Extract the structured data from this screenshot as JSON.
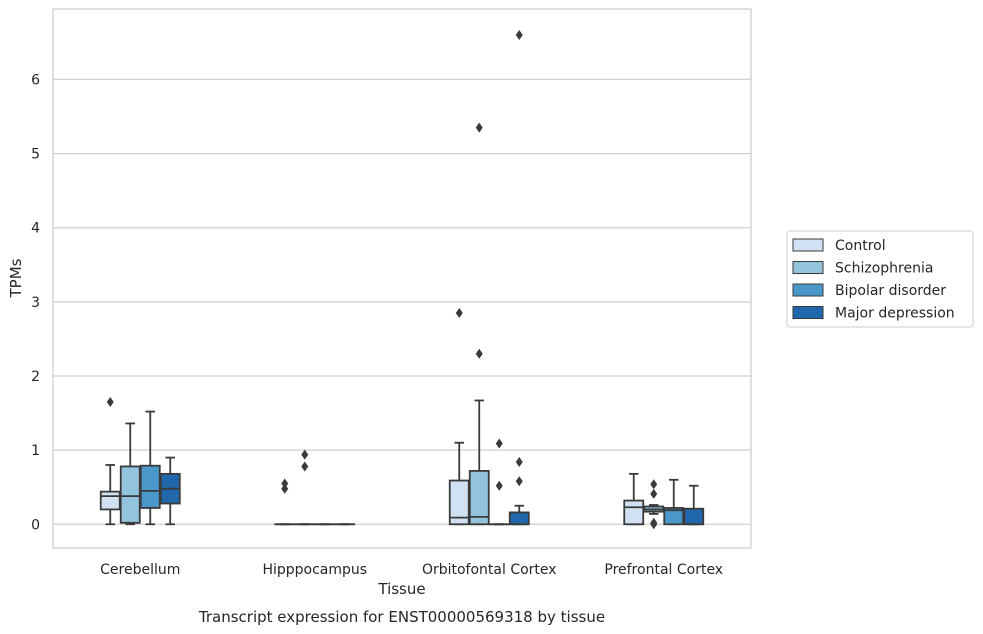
{
  "caption": "Transcript expression for ENST00000569318 by tissue",
  "chart_data": {
    "type": "box",
    "xlabel": "Tissue",
    "ylabel": "TPMs",
    "ylim": [
      -0.32,
      6.95
    ],
    "yticks": [
      0,
      1,
      2,
      3,
      4,
      5,
      6
    ],
    "grid": "horizontal",
    "legend_position": "right",
    "categories": [
      "Cerebellum",
      "Hipppocampus",
      "Orbitofontal Cortex",
      "Prefrontal Cortex"
    ],
    "series": [
      {
        "name": "Control",
        "color": "#cfe1f2",
        "boxes": [
          {
            "whislo": 0.0,
            "q1": 0.2,
            "med": 0.38,
            "q3": 0.44,
            "whishi": 0.8,
            "fliers": [
              1.65
            ]
          },
          {
            "whislo": 0.0,
            "q1": 0.0,
            "med": 0.0,
            "q3": 0.0,
            "whishi": 0.0,
            "fliers": [
              0.48,
              0.55
            ]
          },
          {
            "whislo": 0.0,
            "q1": 0.0,
            "med": 0.09,
            "q3": 0.59,
            "whishi": 1.1,
            "fliers": [
              2.85
            ]
          },
          {
            "whislo": 0.0,
            "q1": 0.0,
            "med": 0.23,
            "q3": 0.32,
            "whishi": 0.68,
            "fliers": []
          }
        ]
      },
      {
        "name": "Schizophrenia",
        "color": "#93c4de",
        "boxes": [
          {
            "whislo": 0.0,
            "q1": 0.02,
            "med": 0.38,
            "q3": 0.78,
            "whishi": 1.36,
            "fliers": []
          },
          {
            "whislo": 0.0,
            "q1": 0.0,
            "med": 0.0,
            "q3": 0.0,
            "whishi": 0.0,
            "fliers": [
              0.78,
              0.94
            ]
          },
          {
            "whislo": 0.0,
            "q1": 0.0,
            "med": 0.1,
            "q3": 0.72,
            "whishi": 1.67,
            "fliers": [
              2.3,
              5.35
            ]
          },
          {
            "whislo": 0.14,
            "q1": 0.17,
            "med": 0.2,
            "q3": 0.24,
            "whishi": 0.26,
            "fliers": [
              0.0,
              0.02,
              0.41,
              0.54
            ]
          }
        ]
      },
      {
        "name": "Bipolar disorder",
        "color": "#4a98c9",
        "boxes": [
          {
            "whislo": 0.0,
            "q1": 0.22,
            "med": 0.45,
            "q3": 0.79,
            "whishi": 1.52,
            "fliers": []
          },
          {
            "whislo": 0.0,
            "q1": 0.0,
            "med": 0.0,
            "q3": 0.0,
            "whishi": 0.0,
            "fliers": []
          },
          {
            "whislo": 0.0,
            "q1": 0.0,
            "med": 0.0,
            "q3": 0.0,
            "whishi": 0.0,
            "fliers": [
              0.52,
              1.09
            ]
          },
          {
            "whislo": 0.0,
            "q1": 0.0,
            "med": 0.19,
            "q3": 0.22,
            "whishi": 0.6,
            "fliers": []
          }
        ]
      },
      {
        "name": "Major depression",
        "color": "#2167ab",
        "boxes": [
          {
            "whislo": 0.0,
            "q1": 0.28,
            "med": 0.48,
            "q3": 0.68,
            "whishi": 0.9,
            "fliers": []
          },
          {
            "whislo": 0.0,
            "q1": 0.0,
            "med": 0.0,
            "q3": 0.0,
            "whishi": 0.0,
            "fliers": []
          },
          {
            "whislo": 0.0,
            "q1": 0.0,
            "med": 0.0,
            "q3": 0.16,
            "whishi": 0.25,
            "fliers": [
              0.58,
              0.84,
              6.6
            ]
          },
          {
            "whislo": 0.0,
            "q1": 0.0,
            "med": 0.0,
            "q3": 0.21,
            "whishi": 0.52,
            "fliers": []
          }
        ]
      }
    ]
  }
}
